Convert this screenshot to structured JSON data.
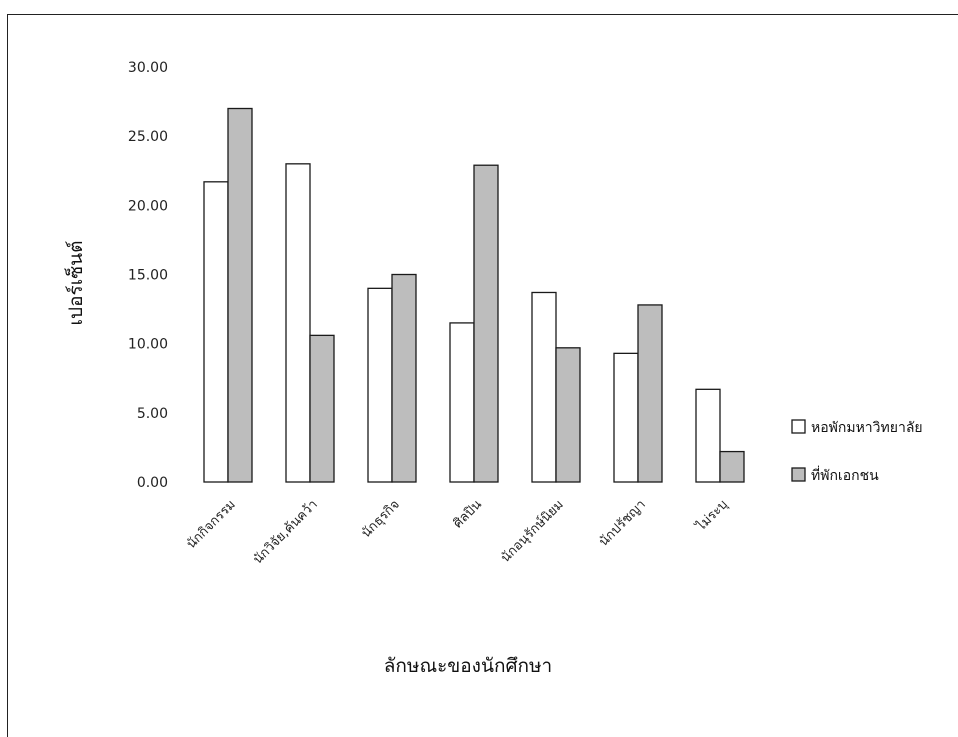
{
  "chart_data": {
    "type": "bar",
    "title": "",
    "xlabel": "ลักษณะของนักศึกษา",
    "ylabel": "เปอร์เซ็นต์",
    "ylim": [
      0,
      30
    ],
    "y_ticks": [
      "0.00",
      "5.00",
      "10.00",
      "15.00",
      "20.00",
      "25.00",
      "30.00"
    ],
    "grid": false,
    "legend_position": "right",
    "categories": [
      "นักกิจกรรม",
      "นักวิจัย,ค้นคว้า",
      "นักธุรกิจ",
      "ศิลปิน",
      "นักอนุรักษ์นิยม",
      "นักปรัชญา",
      "ไม่ระบุ"
    ],
    "series": [
      {
        "name": "หอพักมหาวิทยาลัย",
        "color": "#ffffff",
        "values": [
          21.7,
          23.0,
          14.0,
          11.5,
          13.7,
          9.3,
          6.7
        ]
      },
      {
        "name": "ที่พักเอกชน",
        "color": "#bdbdbd",
        "values": [
          27.0,
          10.6,
          15.0,
          22.9,
          9.7,
          12.8,
          2.2
        ]
      }
    ]
  }
}
